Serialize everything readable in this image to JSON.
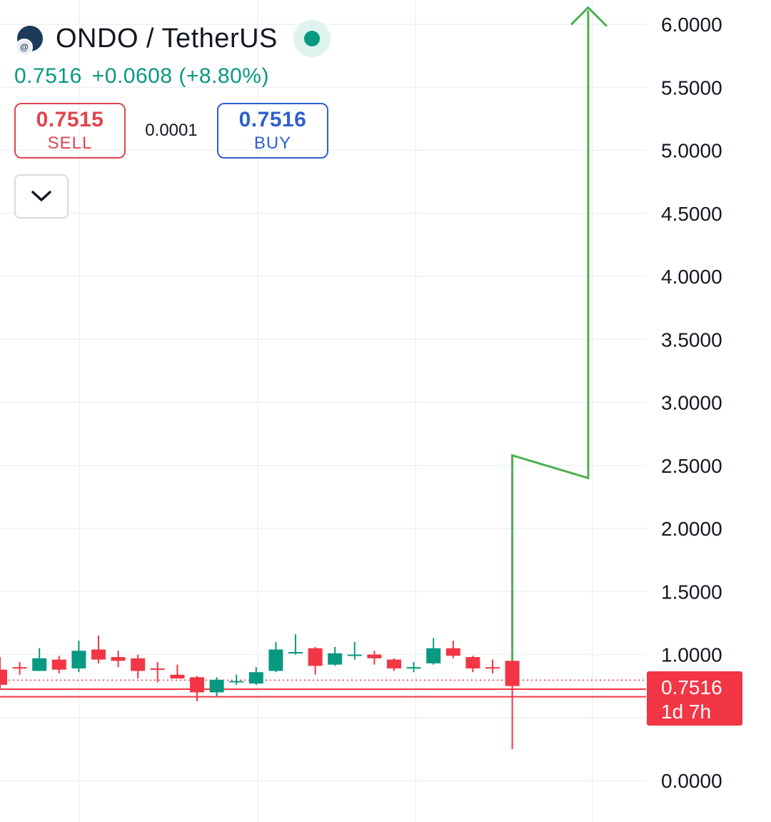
{
  "header": {
    "pair": "ONDO / TetherUS",
    "last_price": "0.7516",
    "change": "+0.0608 (+8.80%)"
  },
  "trade": {
    "sell_price": "0.7515",
    "sell_label": "SELL",
    "spread": "0.0001",
    "buy_price": "0.7516",
    "buy_label": "BUY"
  },
  "icons": {
    "logo": "ondo-logo-icon",
    "market_status": "market-open-dot-icon",
    "collapse": "chevron-down-icon"
  },
  "colors": {
    "up": "#089981",
    "down": "#f23645",
    "annotation": "#4caf50",
    "buy": "#2f5fd0"
  },
  "chart_data": {
    "type": "candlestick",
    "y_axis": {
      "ticks": [
        "0.0000",
        "1.0000",
        "1.5000",
        "2.0000",
        "2.5000",
        "3.0000",
        "3.5000",
        "4.0000",
        "4.5000",
        "5.0000",
        "5.5000",
        "6.0000"
      ],
      "ylim": [
        -0.5,
        6.15
      ]
    },
    "grid": true,
    "candles": [
      {
        "o": 0.88,
        "h": 0.98,
        "l": 0.73,
        "c": 0.76
      },
      {
        "o": 0.9,
        "h": 0.94,
        "l": 0.84,
        "c": 0.89
      },
      {
        "o": 0.87,
        "h": 1.05,
        "l": 0.87,
        "c": 0.97
      },
      {
        "o": 0.96,
        "h": 0.99,
        "l": 0.85,
        "c": 0.88
      },
      {
        "o": 0.89,
        "h": 1.11,
        "l": 0.86,
        "c": 1.03
      },
      {
        "o": 1.04,
        "h": 1.15,
        "l": 0.93,
        "c": 0.96
      },
      {
        "o": 0.98,
        "h": 1.03,
        "l": 0.9,
        "c": 0.95
      },
      {
        "o": 0.97,
        "h": 1.0,
        "l": 0.81,
        "c": 0.87
      },
      {
        "o": 0.89,
        "h": 0.94,
        "l": 0.78,
        "c": 0.88
      },
      {
        "o": 0.84,
        "h": 0.92,
        "l": 0.81,
        "c": 0.81
      },
      {
        "o": 0.82,
        "h": 0.83,
        "l": 0.63,
        "c": 0.7
      },
      {
        "o": 0.7,
        "h": 0.82,
        "l": 0.67,
        "c": 0.8
      },
      {
        "o": 0.79,
        "h": 0.84,
        "l": 0.76,
        "c": 0.79
      },
      {
        "o": 0.77,
        "h": 0.9,
        "l": 0.76,
        "c": 0.86
      },
      {
        "o": 0.87,
        "h": 1.1,
        "l": 0.86,
        "c": 1.04
      },
      {
        "o": 1.02,
        "h": 1.16,
        "l": 1.0,
        "c": 1.02
      },
      {
        "o": 1.05,
        "h": 1.06,
        "l": 0.84,
        "c": 0.91
      },
      {
        "o": 0.92,
        "h": 1.06,
        "l": 0.91,
        "c": 1.01
      },
      {
        "o": 1.0,
        "h": 1.1,
        "l": 0.96,
        "c": 1.0
      },
      {
        "o": 1.0,
        "h": 1.03,
        "l": 0.92,
        "c": 0.97
      },
      {
        "o": 0.96,
        "h": 0.97,
        "l": 0.87,
        "c": 0.89
      },
      {
        "o": 0.9,
        "h": 0.94,
        "l": 0.86,
        "c": 0.9
      },
      {
        "o": 0.93,
        "h": 1.13,
        "l": 0.92,
        "c": 1.05
      },
      {
        "o": 1.05,
        "h": 1.11,
        "l": 0.97,
        "c": 0.99
      },
      {
        "o": 0.98,
        "h": 0.99,
        "l": 0.86,
        "c": 0.89
      },
      {
        "o": 0.9,
        "h": 0.96,
        "l": 0.85,
        "c": 0.89
      },
      {
        "o": 0.95,
        "h": 0.99,
        "l": 0.25,
        "c": 0.75
      }
    ],
    "last_price": {
      "value": 0.7516,
      "label": "0.7516",
      "countdown": "1d 7h"
    },
    "horizontal_lines": [
      0.725,
      0.665
    ],
    "annotation_path": [
      [
        0.9,
        0.95
      ],
      [
        0.9,
        2.58
      ],
      [
        4.5,
        2.4
      ],
      [
        4.5,
        6.11
      ]
    ]
  }
}
